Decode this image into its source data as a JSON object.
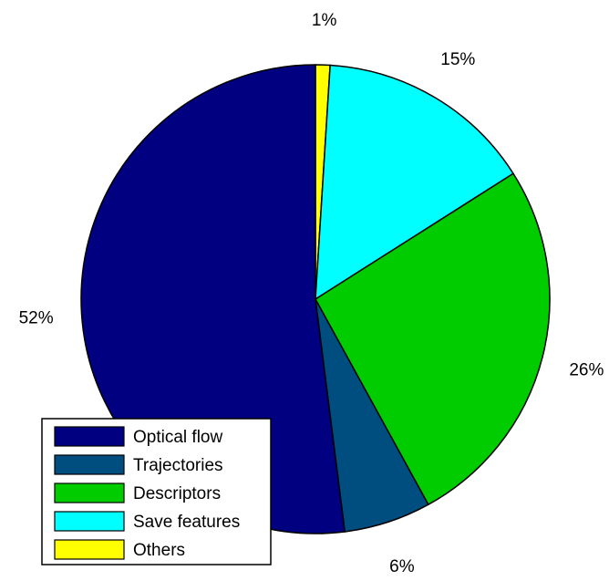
{
  "chart_data": {
    "type": "pie",
    "title": "",
    "legend_position": "bottom-left",
    "slices": [
      {
        "label": "Others",
        "value": 1,
        "display": "1%",
        "color": "#ffff00"
      },
      {
        "label": "Save features",
        "value": 15,
        "display": "15%",
        "color": "#00ffff"
      },
      {
        "label": "Descriptors",
        "value": 26,
        "display": "26%",
        "color": "#00cc00"
      },
      {
        "label": "Trajectories",
        "value": 6,
        "display": "6%",
        "color": "#004d80"
      },
      {
        "label": "Optical flow",
        "value": 52,
        "display": "52%",
        "color": "#000080"
      }
    ],
    "legend": [
      {
        "label": "Optical flow",
        "color": "#000080"
      },
      {
        "label": "Trajectories",
        "color": "#004d80"
      },
      {
        "label": "Descriptors",
        "color": "#00cc00"
      },
      {
        "label": "Save features",
        "color": "#00ffff"
      },
      {
        "label": "Others",
        "color": "#ffff00"
      }
    ]
  }
}
